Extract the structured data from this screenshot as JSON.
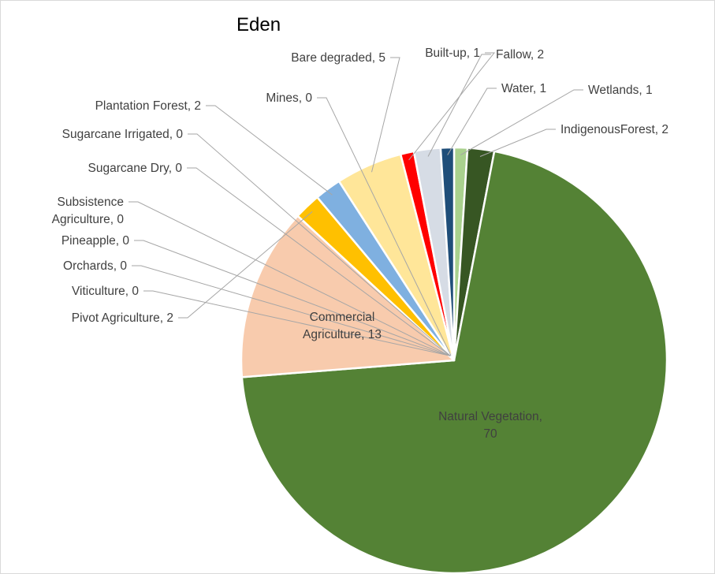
{
  "chart_data": {
    "type": "pie",
    "title": "Eden",
    "start_angle_deg": 0,
    "slices": [
      {
        "category": "Wetlands",
        "value": 1,
        "label": "Wetlands, 1",
        "color": "#a9d18e"
      },
      {
        "category": "IndigenousForest",
        "value": 2,
        "label": "IndigenousForest, 2",
        "color": "#375623"
      },
      {
        "category": "Natural Vegetation",
        "value": 70,
        "label": [
          "Natural Vegetation,",
          "70"
        ],
        "color": "#548235"
      },
      {
        "category": "Commercial Agriculture",
        "value": 13,
        "label": [
          "Commercial",
          "Agriculture, 13"
        ],
        "color": "#f8cbad"
      },
      {
        "category": "Pivot Agriculture",
        "value": 2,
        "label": "Pivot  Agriculture, 2",
        "color": "#ffc000"
      },
      {
        "category": "Viticulture",
        "value": 0,
        "label": "Viticulture, 0",
        "color": "#ed7d31"
      },
      {
        "category": "Orchards",
        "value": 0,
        "label": "Orchards, 0",
        "color": "#c55a11"
      },
      {
        "category": "Pineapple",
        "value": 0,
        "label": "Pineapple, 0",
        "color": "#bf9000"
      },
      {
        "category": "Subsistence Agriculture",
        "value": 0,
        "label": [
          "Subsistence",
          "Agriculture, 0"
        ],
        "color": "#7f6000"
      },
      {
        "category": "Sugarcane Dry",
        "value": 0,
        "label": "Sugarcane Dry, 0",
        "color": "#a5a5a5"
      },
      {
        "category": "Sugarcane Irrigated",
        "value": 0,
        "label": "Sugarcane Irrigated, 0",
        "color": "#7f7f7f"
      },
      {
        "category": "Plantation Forest",
        "value": 2,
        "label": "Plantation Forest, 2",
        "color": "#7fb0e0"
      },
      {
        "category": "Mines",
        "value": 0,
        "label": "Mines, 0",
        "color": "#203864"
      },
      {
        "category": "Bare degraded",
        "value": 5,
        "label": "Bare degraded, 5",
        "color": "#ffe699"
      },
      {
        "category": "Built-up",
        "value": 1,
        "label": "Built-up, 1",
        "color": "#ff0000"
      },
      {
        "category": "Fallow",
        "value": 2,
        "label": "Fallow, 2",
        "color": "#d6dce5"
      },
      {
        "category": "Water",
        "value": 1,
        "label": "Water, 1",
        "color": "#1f4e79"
      }
    ],
    "legend": "none"
  }
}
